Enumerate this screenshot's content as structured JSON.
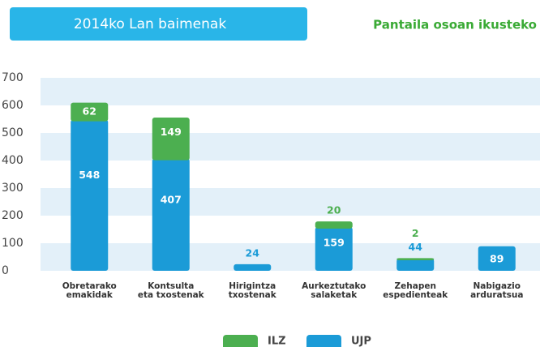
{
  "chart_data": {
    "type": "stacked-bar",
    "title": "2014ko Lan baimenak",
    "link": "Pantaila osoan ikusteko",
    "categories": [
      [
        "Obretarako",
        "emakidak"
      ],
      [
        "Kontsulta",
        "eta txostenak"
      ],
      [
        "Hirigintza",
        "txostenak"
      ],
      [
        "Aurkeztutako",
        "salaketak"
      ],
      [
        "Zehapen",
        "espedienteak"
      ],
      [
        "Nabigazio",
        "arduratsua"
      ]
    ],
    "series": [
      {
        "name": "UJP",
        "color": "#1b9bd7",
        "values": [
          548,
          407,
          24,
          159,
          44,
          89
        ]
      },
      {
        "name": "ILZ",
        "color": "#4caf50",
        "values": [
          62,
          149,
          null,
          20,
          2,
          null
        ]
      }
    ],
    "legend_order": [
      1,
      0
    ],
    "ylim": [
      0,
      700
    ],
    "yticks": [
      0,
      100,
      200,
      300,
      400,
      500,
      600,
      700
    ],
    "grid": "bands"
  }
}
